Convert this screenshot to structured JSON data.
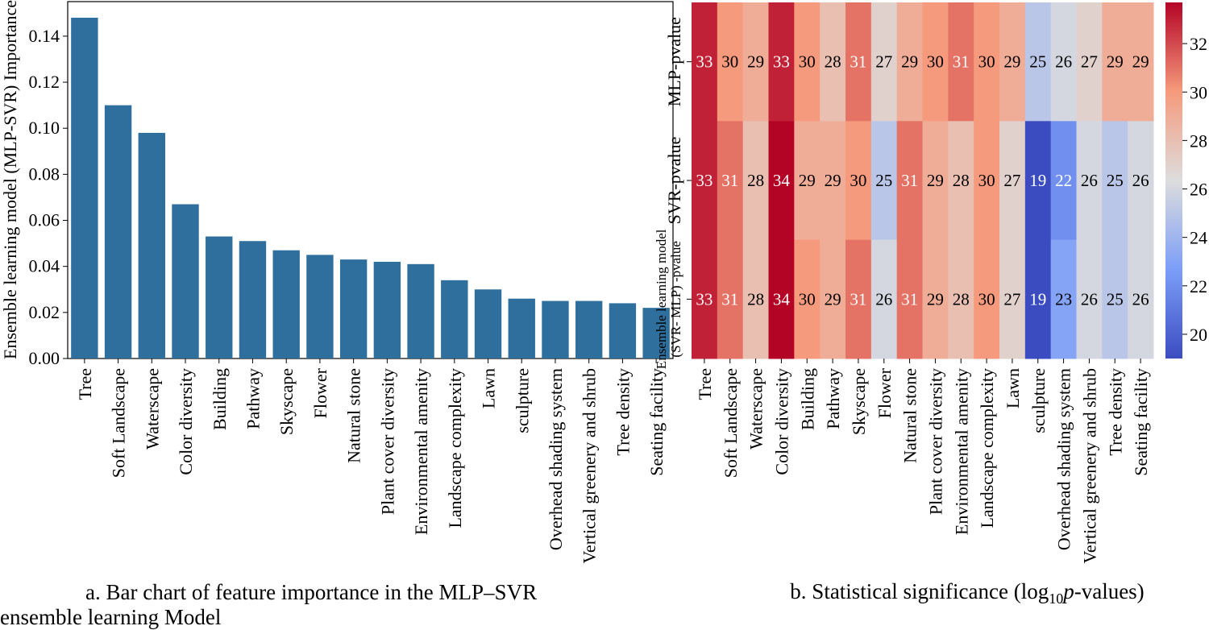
{
  "chart_data": [
    {
      "type": "bar",
      "title": "",
      "xlabel": "",
      "ylabel": "Ensemble learning model (MLP-SVR) Importance",
      "ylim": [
        0,
        0.155
      ],
      "yticks": [
        "0.00",
        "0.02",
        "0.04",
        "0.06",
        "0.08",
        "0.10",
        "0.12",
        "0.14"
      ],
      "ytick_values": [
        0,
        0.02,
        0.04,
        0.06,
        0.08,
        0.1,
        0.12,
        0.14
      ],
      "categories": [
        "Tree",
        "Soft Landscape",
        "Waterscape",
        "Color diversity",
        "Building",
        "Pathway",
        "Skyscape",
        "Flower",
        "Natural stone",
        "Plant cover diversity",
        "Environmental amenity",
        "Landscape complexity",
        "Lawn",
        "sculpture",
        "Overhead shading system",
        "Vertical greenery and shrub",
        "Tree density",
        "Seating  facility"
      ],
      "values": [
        0.148,
        0.11,
        0.098,
        0.067,
        0.053,
        0.051,
        0.047,
        0.045,
        0.043,
        0.042,
        0.041,
        0.034,
        0.03,
        0.026,
        0.025,
        0.025,
        0.024,
        0.022
      ],
      "bar_color": "#2e6f9e",
      "caption_line1": "a. Bar chart of feature importance in the MLP–SVR",
      "caption_line2": "ensemble learning Model"
    },
    {
      "type": "heatmap",
      "columns": [
        "Tree",
        "Soft Landscape",
        "Waterscape",
        "Color diversity",
        "Building",
        "Pathway",
        "Skyscape",
        "Flower",
        "Natural stone",
        "Plant cover diversity",
        "Environmental amenity",
        "Landscape complexity",
        "Lawn",
        "sculpture",
        "Overhead shading system",
        "Vertical greenery and shrub",
        "Tree density",
        "Seating  facility"
      ],
      "rows": [
        {
          "label": "MLP-pvalue",
          "values": [
            33,
            30,
            29,
            33,
            30,
            28,
            31,
            27,
            29,
            30,
            31,
            30,
            29,
            25,
            26,
            27,
            29,
            29
          ]
        },
        {
          "label": "SVR-pvalue",
          "values": [
            33,
            31,
            28,
            34,
            29,
            29,
            30,
            25,
            31,
            29,
            28,
            30,
            27,
            19,
            22,
            26,
            25,
            26
          ]
        },
        {
          "label_line1": "Ensemble learning model",
          "label_line2": "(SVR- MLP) -pvalue",
          "values": [
            33,
            31,
            28,
            34,
            30,
            29,
            31,
            26,
            31,
            29,
            28,
            30,
            27,
            19,
            23,
            26,
            25,
            26
          ]
        }
      ],
      "colorbar_range": [
        19,
        33.7
      ],
      "colorbar_ticks": [
        "20",
        "22",
        "24",
        "26",
        "28",
        "30",
        "32"
      ],
      "colorbar_tick_values": [
        20,
        22,
        24,
        26,
        28,
        30,
        32
      ],
      "colormap": "coolwarm",
      "caption_prefix": "b. Statistical significance (log",
      "caption_sub": "10",
      "caption_italic": "p",
      "caption_suffix": "-values)"
    }
  ]
}
